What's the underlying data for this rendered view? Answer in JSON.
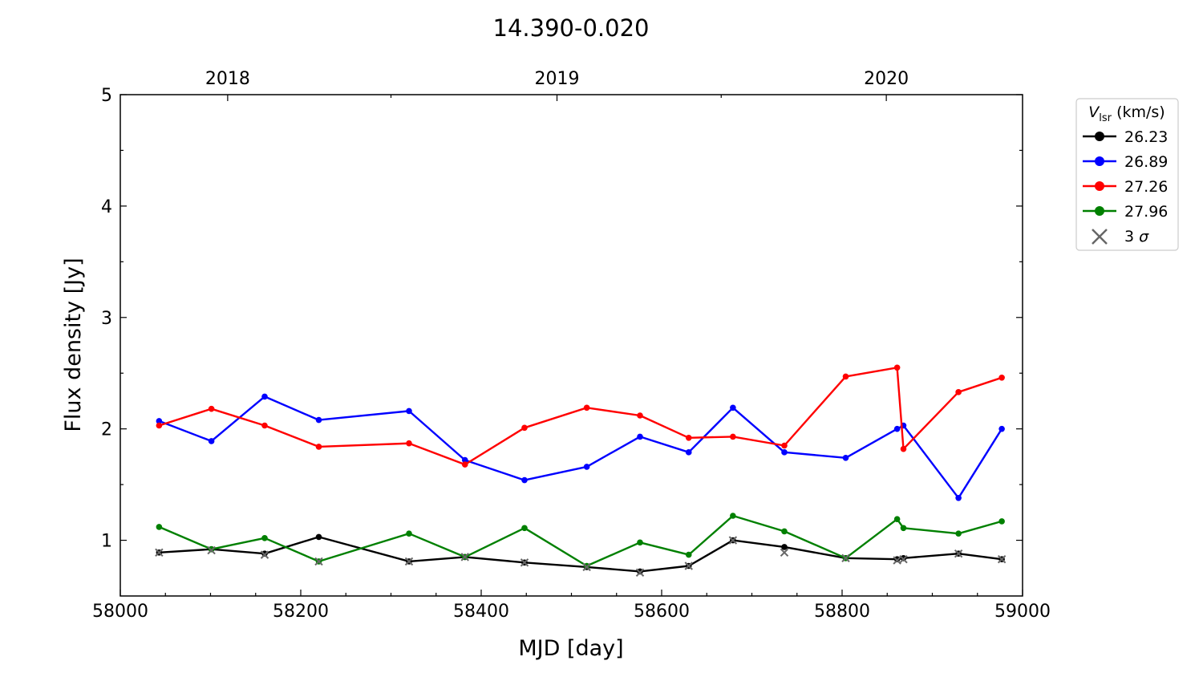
{
  "chart_data": {
    "type": "line",
    "title": "14.390-0.020",
    "xlabel": "MJD [day]",
    "ylabel": "Flux density [Jy]",
    "xlim": [
      58000,
      59000
    ],
    "ylim": [
      0.5,
      5
    ],
    "x_ticks": [
      "58000",
      "58200",
      "58400",
      "58600",
      "58800",
      "59000"
    ],
    "y_ticks": [
      "1",
      "2",
      "3",
      "4",
      "5"
    ],
    "top_axis": {
      "ticks": [
        {
          "label": "2018",
          "mjd": 58119
        },
        {
          "label": "2019",
          "mjd": 58484
        },
        {
          "label": "2020",
          "mjd": 58849
        }
      ]
    },
    "legend": {
      "placement": "outside-right",
      "title_symbol": "V",
      "title_subscript": "lsr",
      "title_unit": "(km/s)",
      "sigma_label": "3",
      "sigma_symbol": "σ"
    },
    "series": [
      {
        "name": "26.23",
        "color": "#000000",
        "x": [
          58043,
          58101,
          58160,
          58220,
          58320,
          58382,
          58448,
          58517,
          58576,
          58630,
          58679,
          58736,
          58804,
          58861,
          58868,
          58929,
          58977
        ],
        "y": [
          0.89,
          0.92,
          0.88,
          1.03,
          0.81,
          0.85,
          0.8,
          0.76,
          0.72,
          0.77,
          1.0,
          0.94,
          0.84,
          0.83,
          0.84,
          0.88,
          0.83
        ]
      },
      {
        "name": "26.89",
        "color": "#0000ff",
        "x": [
          58043,
          58101,
          58160,
          58220,
          58320,
          58382,
          58448,
          58517,
          58576,
          58630,
          58679,
          58736,
          58804,
          58861,
          58868,
          58929,
          58977
        ],
        "y": [
          2.07,
          1.89,
          2.29,
          2.08,
          2.16,
          1.72,
          1.54,
          1.66,
          1.93,
          1.79,
          2.19,
          1.79,
          1.74,
          2.0,
          2.03,
          1.38,
          2.0
        ]
      },
      {
        "name": "27.26",
        "color": "#ff0000",
        "x": [
          58043,
          58101,
          58160,
          58220,
          58320,
          58382,
          58448,
          58517,
          58576,
          58630,
          58679,
          58736,
          58804,
          58861,
          58868,
          58929,
          58977
        ],
        "y": [
          2.03,
          2.18,
          2.03,
          1.84,
          1.87,
          1.68,
          2.01,
          2.19,
          2.12,
          1.92,
          1.93,
          1.85,
          2.47,
          2.55,
          1.82,
          2.33,
          2.46
        ]
      },
      {
        "name": "27.96",
        "color": "#008000",
        "x": [
          58043,
          58101,
          58160,
          58220,
          58320,
          58382,
          58448,
          58517,
          58576,
          58630,
          58679,
          58736,
          58804,
          58861,
          58868,
          58929,
          58977
        ],
        "y": [
          1.12,
          0.92,
          1.02,
          0.81,
          1.06,
          0.85,
          1.11,
          0.77,
          0.98,
          0.87,
          1.22,
          1.08,
          0.84,
          1.19,
          1.11,
          1.06,
          1.17
        ]
      }
    ],
    "sigma3": {
      "name": "3 σ",
      "color": "#666666",
      "x": [
        58043,
        58101,
        58160,
        58220,
        58320,
        58382,
        58448,
        58517,
        58576,
        58630,
        58679,
        58736,
        58804,
        58861,
        58868,
        58929,
        58977
      ],
      "y": [
        0.89,
        0.91,
        0.87,
        0.81,
        0.81,
        0.85,
        0.8,
        0.76,
        0.71,
        0.77,
        1.0,
        0.89,
        0.84,
        0.82,
        0.83,
        0.88,
        0.83
      ]
    }
  }
}
